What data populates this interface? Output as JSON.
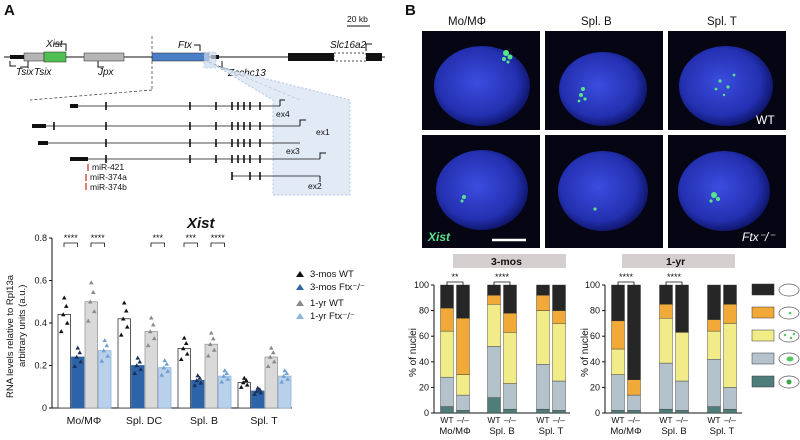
{
  "panel_a": {
    "letter": "A",
    "scale_bar": "20 kb",
    "genes": {
      "xist": "Xist",
      "tsix": "Tsix",
      "tsix2": "Tsix",
      "jpx": "Jpx",
      "ftx": "Ftx",
      "zcchc13": "Zcchc13",
      "slc16a2": "Slc16a2"
    },
    "exons": {
      "ex4": "ex4",
      "ex1": "ex1",
      "ex3": "ex3",
      "ex2": "ex2"
    },
    "mirnas": [
      "miR-421",
      "miR-374a",
      "miR-374b"
    ],
    "chart_title": "Xist",
    "ylabel_1": "RNA levels relative to Rpl13a",
    "ylabel_2": "arbitrary units (a.u.)",
    "legend": [
      "3-mos WT",
      "3-mos Ftx⁻/⁻",
      "1-yr WT",
      "1-yr Ftx⁻/⁻"
    ],
    "significance": [
      "****",
      "****",
      "***",
      "***",
      "****"
    ]
  },
  "chart_data": [
    {
      "type": "bar",
      "title": "Xist",
      "ylabel": "RNA levels relative to Rpl13a arbitrary units (a.u.)",
      "ylim": [
        0,
        0.8
      ],
      "yticks": [
        "0",
        "0.2",
        "0.4",
        "0.6",
        "0.8"
      ],
      "categories": [
        "Mo/MΦ",
        "Spl. DC",
        "Spl. B",
        "Spl. T"
      ],
      "series": [
        {
          "name": "3-mos WT",
          "values": [
            0.44,
            0.42,
            0.28,
            0.12
          ]
        },
        {
          "name": "3-mos Ftx⁻/⁻",
          "values": [
            0.24,
            0.2,
            0.13,
            0.08
          ]
        },
        {
          "name": "1-yr WT",
          "values": [
            0.5,
            0.36,
            0.3,
            0.24
          ]
        },
        {
          "name": "1-yr Ftx⁻/⁻",
          "values": [
            0.27,
            0.19,
            0.15,
            0.15
          ]
        }
      ],
      "legend_position": "right"
    },
    {
      "type": "bar",
      "stacked": true,
      "title": "3-mos",
      "ylabel": "% of nuclei",
      "ylim": [
        0,
        100
      ],
      "yticks": [
        "0",
        "20",
        "40",
        "60",
        "80",
        "100"
      ],
      "categories": [
        "Mo/MΦ WT",
        "Mo/MΦ –/–",
        "Spl. B WT",
        "Spl. B –/–",
        "Spl. T WT",
        "Spl. T –/–"
      ],
      "series": [
        {
          "values": [
            5,
            2,
            12,
            3,
            3,
            2
          ]
        },
        {
          "values": [
            23,
            12,
            40,
            20,
            35,
            23
          ]
        },
        {
          "values": [
            36,
            16,
            33,
            40,
            42,
            45
          ]
        },
        {
          "values": [
            18,
            44,
            7,
            15,
            12,
            10
          ]
        },
        {
          "values": [
            18,
            26,
            8,
            22,
            8,
            20
          ]
        }
      ],
      "significance": [
        "**",
        "****"
      ]
    },
    {
      "type": "bar",
      "stacked": true,
      "title": "1-yr",
      "ylabel": "% of nuclei",
      "ylim": [
        0,
        100
      ],
      "yticks": [
        "0",
        "20",
        "40",
        "60",
        "80",
        "100"
      ],
      "categories": [
        "Mo/MΦ WT",
        "Mo/MΦ –/–",
        "Spl. B WT",
        "Spl. B –/–",
        "Spl. T WT",
        "Spl. T –/–"
      ],
      "series": [
        {
          "values": [
            2,
            2,
            3,
            2,
            5,
            3
          ]
        },
        {
          "values": [
            28,
            12,
            36,
            23,
            37,
            17
          ]
        },
        {
          "values": [
            20,
            0,
            35,
            38,
            22,
            50
          ]
        },
        {
          "values": [
            22,
            12,
            11,
            0,
            9,
            15
          ]
        },
        {
          "values": [
            28,
            74,
            15,
            37,
            27,
            15
          ]
        }
      ],
      "significance": [
        "****",
        "****"
      ]
    }
  ],
  "panel_b": {
    "letter": "B",
    "column_titles": [
      "Mo/MΦ",
      "Spl. B",
      "Spl. T"
    ],
    "label_wt": "WT",
    "label_ko": "Ftx⁻/⁻",
    "label_xist": "Xist",
    "group_labels": [
      "Mo/MΦ",
      "Spl. B",
      "Spl. T"
    ],
    "tick_wt": "WT",
    "tick_ko": "–/–",
    "colors": [
      "#4e7d7a",
      "#b4c2cc",
      "#f1ec88",
      "#f1aa37",
      "#262626"
    ],
    "category_colors": [
      "#4e7d7a",
      "#b4c2cc",
      "#f1ec88",
      "#f1aa37",
      "#262626"
    ]
  }
}
